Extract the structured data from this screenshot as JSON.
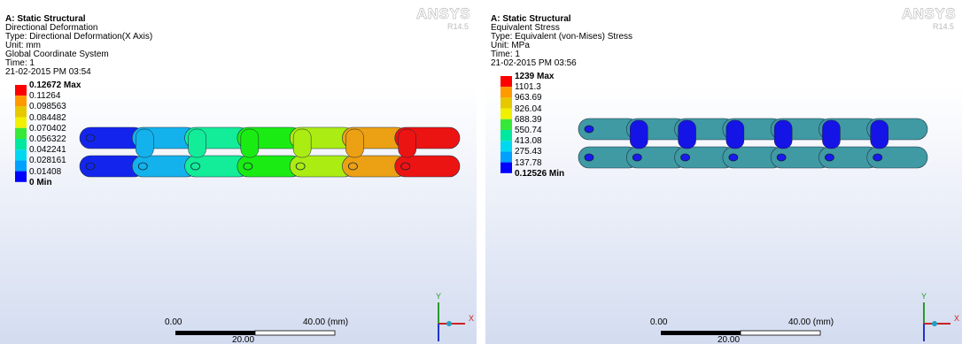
{
  "panels": [
    {
      "title": "A: Static Structural",
      "lines": [
        "Directional Deformation",
        "Type: Directional Deformation(X Axis)",
        "Unit: mm",
        "Global Coordinate System",
        "Time: 1",
        "21-02-2015 PM 03:54"
      ],
      "legend": [
        "0.12672 Max",
        "0.11264",
        "0.098563",
        "0.084482",
        "0.070402",
        "0.056322",
        "0.042241",
        "0.028161",
        "0.01408",
        "0 Min"
      ],
      "logo": "ANSYS",
      "version": "R14.5",
      "scale": {
        "start": "0.00",
        "end": "40.00 (mm)",
        "mid": "20.00"
      },
      "axes": {
        "y": "Y",
        "x": "X"
      }
    },
    {
      "title": "A: Static Structural",
      "lines": [
        "Equivalent Stress",
        "Type: Equivalent (von-Mises) Stress",
        "Unit: MPa",
        "Time: 1",
        "21-02-2015 PM 03:56"
      ],
      "legend": [
        "1239 Max",
        "1101.3",
        "963.69",
        "826.04",
        "688.39",
        "550.74",
        "413.08",
        "275.43",
        "137.78",
        "0.12526 Min"
      ],
      "logo": "ANSYS",
      "version": "R14.5",
      "scale": {
        "start": "0.00",
        "end": "40.00 (mm)",
        "mid": "20.00"
      },
      "axes": {
        "y": "Y",
        "x": "X"
      }
    }
  ]
}
